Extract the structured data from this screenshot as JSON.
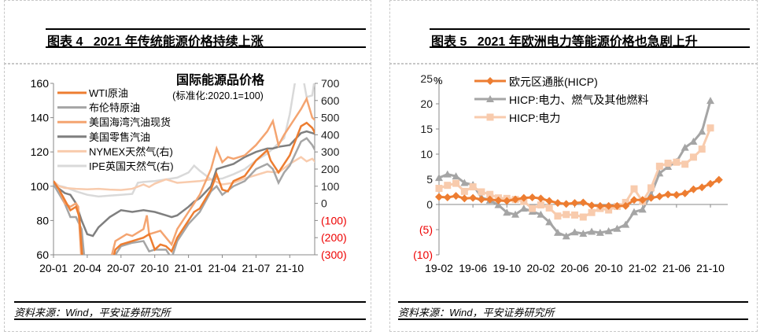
{
  "panels": [
    {
      "fig": "图表 4",
      "title": "2021 年传统能源价格持续上涨",
      "source": "资料来源：Wind，平安证券研究所"
    },
    {
      "fig": "图表 5",
      "title": "2021 年欧洲电力等能源价格也急剧上升",
      "source": "资料来源：Wind，平安证券研究所"
    }
  ],
  "chart_data": [
    {
      "type": "line",
      "title": "国际能源品价格",
      "subtitle": "(标准化:2020.1=100)",
      "x_unit": "months since 20-01",
      "xticks": [
        "20-01",
        "20-04",
        "20-07",
        "20-10",
        "21-01",
        "21-04",
        "21-07",
        "21-10"
      ],
      "ylim": [
        60,
        160
      ],
      "yticks": [
        "60",
        "80",
        "100",
        "120",
        "140",
        "160"
      ],
      "y2lim": [
        -300,
        700
      ],
      "y2ticks": [
        "(300)",
        "(200)",
        "(100)",
        "0",
        "100",
        "200",
        "300",
        "400",
        "500",
        "600",
        "700"
      ],
      "series": [
        {
          "name": "WTI原油",
          "axis": "left",
          "color": "#ed7d31",
          "width": 2.5,
          "points": [
            [
              0,
              103
            ],
            [
              0.5,
              98
            ],
            [
              1,
              92
            ],
            [
              1.5,
              86
            ],
            [
              2,
              88
            ],
            [
              2.3,
              82
            ],
            [
              2.6,
              55
            ],
            [
              3,
              20
            ],
            [
              5,
              50
            ],
            [
              5.5,
              63
            ],
            [
              6,
              66
            ],
            [
              7,
              68
            ],
            [
              8,
              70
            ],
            [
              8.5,
              72
            ],
            [
              9,
              63
            ],
            [
              9.5,
              66
            ],
            [
              10,
              65
            ],
            [
              10.5,
              62
            ],
            [
              11,
              70
            ],
            [
              12,
              80
            ],
            [
              12.5,
              85
            ],
            [
              13,
              87
            ],
            [
              14,
              98
            ],
            [
              14.5,
              107
            ],
            [
              15,
              98
            ],
            [
              15.5,
              97
            ],
            [
              16,
              103
            ],
            [
              17,
              106
            ],
            [
              18,
              115
            ],
            [
              19,
              121
            ],
            [
              19.3,
              115
            ],
            [
              20,
              108
            ],
            [
              20.5,
              113
            ],
            [
              21,
              118
            ],
            [
              22,
              135
            ],
            [
              22.5,
              137
            ],
            [
              23,
              134
            ],
            [
              23.5,
              128
            ],
            [
              24,
              120
            ]
          ]
        },
        {
          "name": "布伦特原油",
          "axis": "left",
          "color": "#a5a5a5",
          "width": 2.5,
          "points": [
            [
              0,
              101
            ],
            [
              1,
              90
            ],
            [
              1.5,
              82
            ],
            [
              2,
              82
            ],
            [
              2.5,
              75
            ],
            [
              3,
              40
            ],
            [
              5,
              50
            ],
            [
              5.5,
              60
            ],
            [
              6,
              65
            ],
            [
              7,
              67
            ],
            [
              8,
              68
            ],
            [
              8.5,
              62
            ],
            [
              9,
              63
            ],
            [
              10,
              63
            ],
            [
              10.5,
              58
            ],
            [
              11,
              68
            ],
            [
              12,
              78
            ],
            [
              13,
              85
            ],
            [
              14,
              97
            ],
            [
              14.5,
              100
            ],
            [
              15,
              95
            ],
            [
              16,
              100
            ],
            [
              17,
              103
            ],
            [
              18,
              110
            ],
            [
              19,
              113
            ],
            [
              19.5,
              110
            ],
            [
              20,
              102
            ],
            [
              20.5,
              108
            ],
            [
              21,
              112
            ],
            [
              22,
              126
            ],
            [
              22.5,
              128
            ],
            [
              23,
              124
            ],
            [
              23.5,
              118
            ],
            [
              24,
              106
            ]
          ]
        },
        {
          "name": "美国海湾汽油现货",
          "axis": "left",
          "color": "#f4a470",
          "width": 2.5,
          "points": [
            [
              0,
              103
            ],
            [
              0.5,
              98
            ],
            [
              1,
              90
            ],
            [
              1.5,
              88
            ],
            [
              2,
              90
            ],
            [
              2.2,
              88
            ],
            [
              2.5,
              55
            ],
            [
              5,
              55
            ],
            [
              5.5,
              68
            ],
            [
              6,
              70
            ],
            [
              6.5,
              72
            ],
            [
              7,
              71
            ],
            [
              7.5,
              73
            ],
            [
              8,
              75
            ],
            [
              8.3,
              83
            ],
            [
              8.5,
              72
            ],
            [
              9,
              73
            ],
            [
              9.5,
              74
            ],
            [
              10,
              70
            ],
            [
              10.5,
              66
            ],
            [
              11,
              75
            ],
            [
              12,
              85
            ],
            [
              12.5,
              90
            ],
            [
              13,
              95
            ],
            [
              14,
              110
            ],
            [
              14.5,
              122
            ],
            [
              15,
              114
            ],
            [
              15.5,
              117
            ],
            [
              16,
              116
            ],
            [
              17,
              118
            ],
            [
              18,
              124
            ],
            [
              19,
              132
            ],
            [
              19.5,
              138
            ],
            [
              20,
              124
            ],
            [
              20.5,
              130
            ],
            [
              21,
              135
            ],
            [
              22,
              145
            ],
            [
              22.5,
              151
            ],
            [
              23,
              140
            ],
            [
              23.5,
              137
            ],
            [
              24,
              125
            ]
          ]
        },
        {
          "name": "美国零售汽油",
          "axis": "left",
          "color": "#7f7f7f",
          "width": 2.5,
          "points": [
            [
              0,
              101
            ],
            [
              1,
              96
            ],
            [
              1.5,
              95
            ],
            [
              2,
              90
            ],
            [
              2.5,
              80
            ],
            [
              3,
              72
            ],
            [
              3.5,
              71
            ],
            [
              4,
              76
            ],
            [
              5,
              82
            ],
            [
              6,
              86
            ],
            [
              7,
              85
            ],
            [
              8,
              86
            ],
            [
              9,
              85
            ],
            [
              10,
              83
            ],
            [
              10.5,
              82
            ],
            [
              11,
              83
            ],
            [
              12,
              88
            ],
            [
              12.5,
              91
            ],
            [
              13,
              93
            ],
            [
              14,
              100
            ],
            [
              14.5,
              110
            ],
            [
              15,
              111
            ],
            [
              16,
              113
            ],
            [
              17,
              117
            ],
            [
              18,
              120
            ],
            [
              19,
              122
            ],
            [
              19.5,
              122
            ],
            [
              20,
              123
            ],
            [
              21,
              124
            ],
            [
              22,
              131
            ],
            [
              22.5,
              132
            ],
            [
              23,
              131
            ],
            [
              23.5,
              130
            ]
          ]
        },
        {
          "name": "NYMEX天然气(右)",
          "axis": "right",
          "color": "#f8cbad",
          "width": 2.5,
          "points": [
            [
              0,
              130
            ],
            [
              0.5,
              100
            ],
            [
              1,
              90
            ],
            [
              2,
              85
            ],
            [
              3,
              82
            ],
            [
              4,
              85
            ],
            [
              5,
              80
            ],
            [
              6,
              78
            ],
            [
              7,
              85
            ],
            [
              8,
              110
            ],
            [
              8.5,
              95
            ],
            [
              9,
              115
            ],
            [
              10,
              140
            ],
            [
              11,
              120
            ],
            [
              12,
              125
            ],
            [
              13,
              130
            ],
            [
              14,
              140
            ],
            [
              15,
              110
            ],
            [
              16,
              120
            ],
            [
              17,
              145
            ],
            [
              18,
              165
            ],
            [
              19,
              185
            ],
            [
              20,
              180
            ],
            [
              21,
              230
            ],
            [
              22,
              270
            ],
            [
              22.5,
              245
            ],
            [
              23,
              260
            ],
            [
              23.5,
              225
            ],
            [
              24,
              210
            ]
          ]
        },
        {
          "name": "IPE英国天然气(右)",
          "axis": "right",
          "color": "#d9d9d9",
          "width": 2.5,
          "points": [
            [
              0,
              110
            ],
            [
              1,
              95
            ],
            [
              2,
              70
            ],
            [
              3,
              50
            ],
            [
              4,
              40
            ],
            [
              5,
              45
            ],
            [
              6,
              50
            ],
            [
              7,
              55
            ],
            [
              7.5,
              120
            ],
            [
              8,
              125
            ],
            [
              9,
              130
            ],
            [
              10,
              140
            ],
            [
              11,
              150
            ],
            [
              12,
              180
            ],
            [
              12.5,
              220
            ],
            [
              13,
              190
            ],
            [
              14,
              140
            ],
            [
              15,
              145
            ],
            [
              16,
              170
            ],
            [
              17,
              200
            ],
            [
              18,
              250
            ],
            [
              19,
              290
            ],
            [
              20,
              350
            ],
            [
              20.5,
              380
            ],
            [
              21,
              520
            ],
            [
              21.5,
              720
            ],
            [
              22,
              800
            ],
            [
              22.5,
              620
            ],
            [
              23,
              630
            ],
            [
              23.2,
              720
            ]
          ]
        }
      ]
    },
    {
      "type": "line",
      "ylabel": "%",
      "x_unit": "months since 19-02",
      "xticks": [
        "19-02",
        "19-06",
        "19-10",
        "20-02",
        "20-06",
        "20-10",
        "21-02",
        "21-06",
        "21-10"
      ],
      "ylim": [
        -10,
        25
      ],
      "yticks": [
        "(10)",
        "(5)",
        "0",
        "5",
        "10",
        "15",
        "20",
        "25"
      ],
      "series": [
        {
          "name": "欧元区通胀(HICP)",
          "color": "#ed7d31",
          "marker": "diamond",
          "values": [
            1.5,
            1.4,
            1.7,
            1.2,
            1.3,
            1.0,
            1.0,
            0.8,
            0.7,
            1.0,
            1.3,
            1.4,
            1.2,
            0.7,
            0.3,
            0.1,
            0.3,
            0.4,
            -0.2,
            -0.3,
            -0.3,
            -0.3,
            -0.3,
            0.9,
            0.9,
            1.3,
            1.6,
            2.0,
            1.9,
            2.2,
            3.0,
            3.4,
            4.1,
            4.9
          ]
        },
        {
          "name": "HICP:电力、燃气及其他燃料",
          "color": "#a5a5a5",
          "marker": "triangle",
          "values": [
            5.3,
            6.0,
            5.6,
            4.3,
            3.9,
            1.4,
            0.8,
            -0.1,
            -1.6,
            -2.0,
            -0.8,
            -1.4,
            -2.0,
            -3.5,
            -5.6,
            -6.3,
            -5.5,
            -5.8,
            -5.4,
            -5.6,
            -5.3,
            -4.8,
            -4.0,
            -1.5,
            -1.0,
            2.0,
            6.2,
            7.5,
            8.5,
            11.3,
            12.5,
            14.5,
            20.6
          ]
        },
        {
          "name": "HICP:电力",
          "color": "#f8cbad",
          "marker": "square",
          "values": [
            3.2,
            3.8,
            4.2,
            2.6,
            3.5,
            2.5,
            2.0,
            1.3,
            1.2,
            1.0,
            0.6,
            -0.8,
            -0.1,
            -0.7,
            -2.3,
            -2.0,
            -2.1,
            -2.5,
            -1.6,
            -0.8,
            -1.1,
            -0.4,
            0.4,
            3.1,
            0.6,
            3.3,
            7.6,
            8.2,
            8.4,
            8.0,
            9.4,
            11.0,
            15.2
          ]
        }
      ]
    }
  ]
}
